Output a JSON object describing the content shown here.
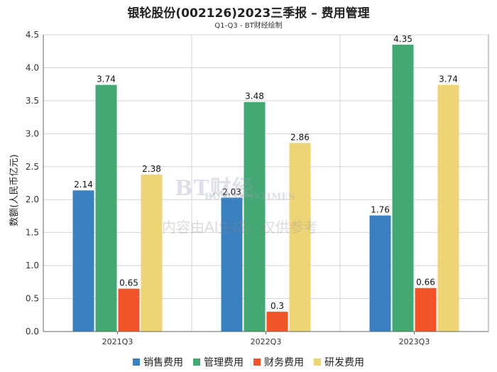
{
  "chart_data": {
    "type": "bar",
    "title": "银轮股份(002126)2023三季报 – 费用管理",
    "subtitle": "Q1-Q3 - BT财经绘制",
    "xlabel": "",
    "ylabel": "数额(人民币亿元)",
    "ylim": [
      0,
      4.5
    ],
    "yticks": [
      "0.0",
      "0.5",
      "1.0",
      "1.5",
      "2.0",
      "2.5",
      "3.0",
      "3.5",
      "4.0",
      "4.5"
    ],
    "grid": true,
    "legend_position": "bottom",
    "categories": [
      "2021Q3",
      "2022Q3",
      "2023Q3"
    ],
    "series": [
      {
        "name": "销售费用",
        "color": "#3a80c1",
        "values": [
          2.14,
          2.03,
          1.76
        ],
        "labels": [
          "2.14",
          "2.03",
          "1.76"
        ]
      },
      {
        "name": "管理费用",
        "color": "#43a874",
        "values": [
          3.74,
          3.48,
          4.35
        ],
        "labels": [
          "3.74",
          "3.48",
          "4.35"
        ]
      },
      {
        "name": "财务费用",
        "color": "#f0552a",
        "values": [
          0.65,
          0.3,
          0.66
        ],
        "labels": [
          "0.65",
          "0.3",
          "0.66"
        ]
      },
      {
        "name": "研发费用",
        "color": "#edd577",
        "values": [
          2.38,
          2.86,
          3.74
        ],
        "labels": [
          "2.38",
          "2.86",
          "3.74"
        ]
      }
    ]
  },
  "watermark": {
    "logo_text": "BT财经",
    "sub_text": "BUSINESSTIMES",
    "note": "内容由AI生成，仅供参考"
  }
}
